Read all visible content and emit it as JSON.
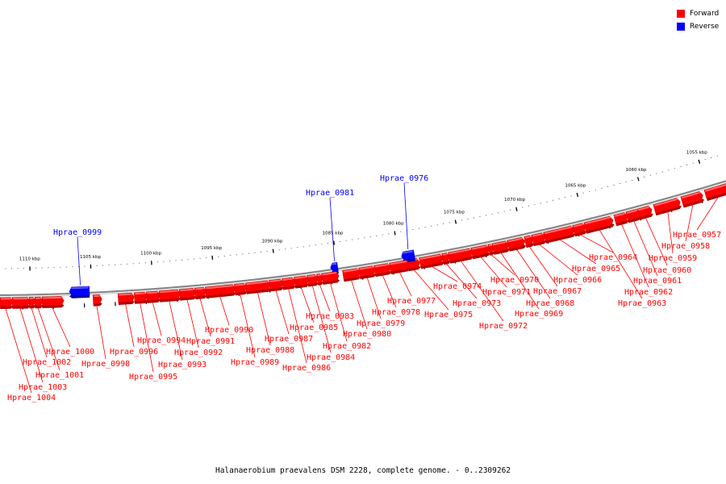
{
  "legend": [
    {
      "label": "Forward",
      "color": "#ff0000"
    },
    {
      "label": "Reverse",
      "color": "#0000ff"
    }
  ],
  "caption": "Halanaerobium praevalens DSM 2228, complete genome. - 0..2309262",
  "kbp_scale": [
    {
      "label": "1055 kbp",
      "kbp": 1055
    },
    {
      "label": "1060 kbp",
      "kbp": 1060
    },
    {
      "label": "1065 kbp",
      "kbp": 1065
    },
    {
      "label": "1070 kbp",
      "kbp": 1070
    },
    {
      "label": "1075 kbp",
      "kbp": 1075
    },
    {
      "label": "1080 kbp",
      "kbp": 1080
    },
    {
      "label": "1085 kbp",
      "kbp": 1085
    },
    {
      "label": "1090 kbp",
      "kbp": 1090
    },
    {
      "label": "1095 kbp",
      "kbp": 1095
    },
    {
      "label": "1100 kbp",
      "kbp": 1100
    },
    {
      "label": "1105 kbp",
      "kbp": 1105
    },
    {
      "label": "1110 kbp",
      "kbp": 1110
    }
  ],
  "genes": [
    {
      "name": "Hprae_0957",
      "strand": "forward"
    },
    {
      "name": "Hprae_0958",
      "strand": "forward"
    },
    {
      "name": "Hprae_0959",
      "strand": "forward"
    },
    {
      "name": "Hprae_0960",
      "strand": "forward"
    },
    {
      "name": "Hprae_0961",
      "strand": "forward"
    },
    {
      "name": "Hprae_0962",
      "strand": "forward"
    },
    {
      "name": "Hprae_0963",
      "strand": "forward"
    },
    {
      "name": "Hprae_0964",
      "strand": "forward"
    },
    {
      "name": "Hprae_0965",
      "strand": "forward"
    },
    {
      "name": "Hprae_0966",
      "strand": "forward"
    },
    {
      "name": "Hprae_0967",
      "strand": "forward"
    },
    {
      "name": "Hprae_0968",
      "strand": "forward"
    },
    {
      "name": "Hprae_0969",
      "strand": "forward"
    },
    {
      "name": "Hprae_0970",
      "strand": "forward"
    },
    {
      "name": "Hprae_0971",
      "strand": "forward"
    },
    {
      "name": "Hprae_0972",
      "strand": "forward"
    },
    {
      "name": "Hprae_0973",
      "strand": "forward"
    },
    {
      "name": "Hprae_0974",
      "strand": "forward"
    },
    {
      "name": "Hprae_0975",
      "strand": "forward"
    },
    {
      "name": "Hprae_0976",
      "strand": "reverse"
    },
    {
      "name": "Hprae_0977",
      "strand": "forward"
    },
    {
      "name": "Hprae_0978",
      "strand": "forward"
    },
    {
      "name": "Hprae_0979",
      "strand": "forward"
    },
    {
      "name": "Hprae_0980",
      "strand": "forward"
    },
    {
      "name": "Hprae_0981",
      "strand": "reverse"
    },
    {
      "name": "Hprae_0982",
      "strand": "forward"
    },
    {
      "name": "Hprae_0983",
      "strand": "forward"
    },
    {
      "name": "Hprae_0984",
      "strand": "forward"
    },
    {
      "name": "Hprae_0985",
      "strand": "forward"
    },
    {
      "name": "Hprae_0986",
      "strand": "forward"
    },
    {
      "name": "Hprae_0987",
      "strand": "forward"
    },
    {
      "name": "Hprae_0988",
      "strand": "forward"
    },
    {
      "name": "Hprae_0989",
      "strand": "forward"
    },
    {
      "name": "Hprae_0990",
      "strand": "forward"
    },
    {
      "name": "Hprae_0991",
      "strand": "forward"
    },
    {
      "name": "Hprae_0992",
      "strand": "forward"
    },
    {
      "name": "Hprae_0993",
      "strand": "forward"
    },
    {
      "name": "Hprae_0994",
      "strand": "forward"
    },
    {
      "name": "Hprae_0995",
      "strand": "forward"
    },
    {
      "name": "Hprae_0996",
      "strand": "forward"
    },
    {
      "name": "Hprae_0998",
      "strand": "forward"
    },
    {
      "name": "Hprae_0999",
      "strand": "reverse"
    },
    {
      "name": "Hprae_1000",
      "strand": "forward"
    },
    {
      "name": "Hprae_1001",
      "strand": "forward"
    },
    {
      "name": "Hprae_1002",
      "strand": "forward"
    },
    {
      "name": "Hprae_1003",
      "strand": "forward"
    },
    {
      "name": "Hprae_1004",
      "strand": "forward"
    }
  ]
}
